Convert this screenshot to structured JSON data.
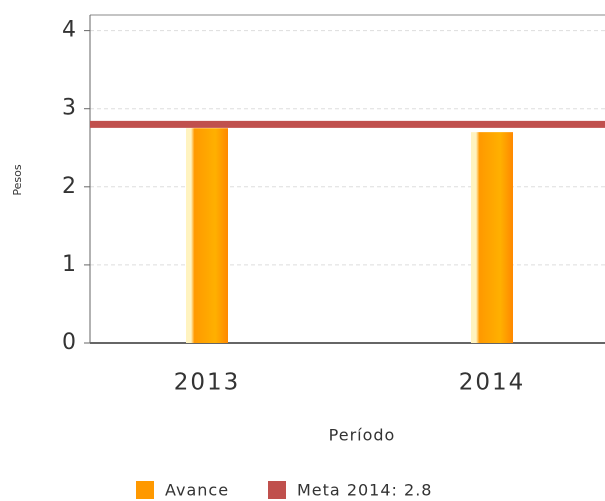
{
  "chart_data": {
    "type": "bar",
    "categories": [
      "2013",
      "2014"
    ],
    "series": [
      {
        "name": "Avance",
        "color": "#ff9900",
        "values": [
          2.75,
          2.7
        ]
      },
      {
        "name": "Meta 2014: 2.8",
        "color": "#c0504d",
        "values": [
          2.8,
          2.8
        ]
      }
    ],
    "ylim": [
      0,
      4.2
    ],
    "yticks": [
      0,
      1,
      2,
      3,
      4
    ],
    "grid": true,
    "y_label": "Pesos",
    "x_label": "Período",
    "legend": "bottom"
  }
}
